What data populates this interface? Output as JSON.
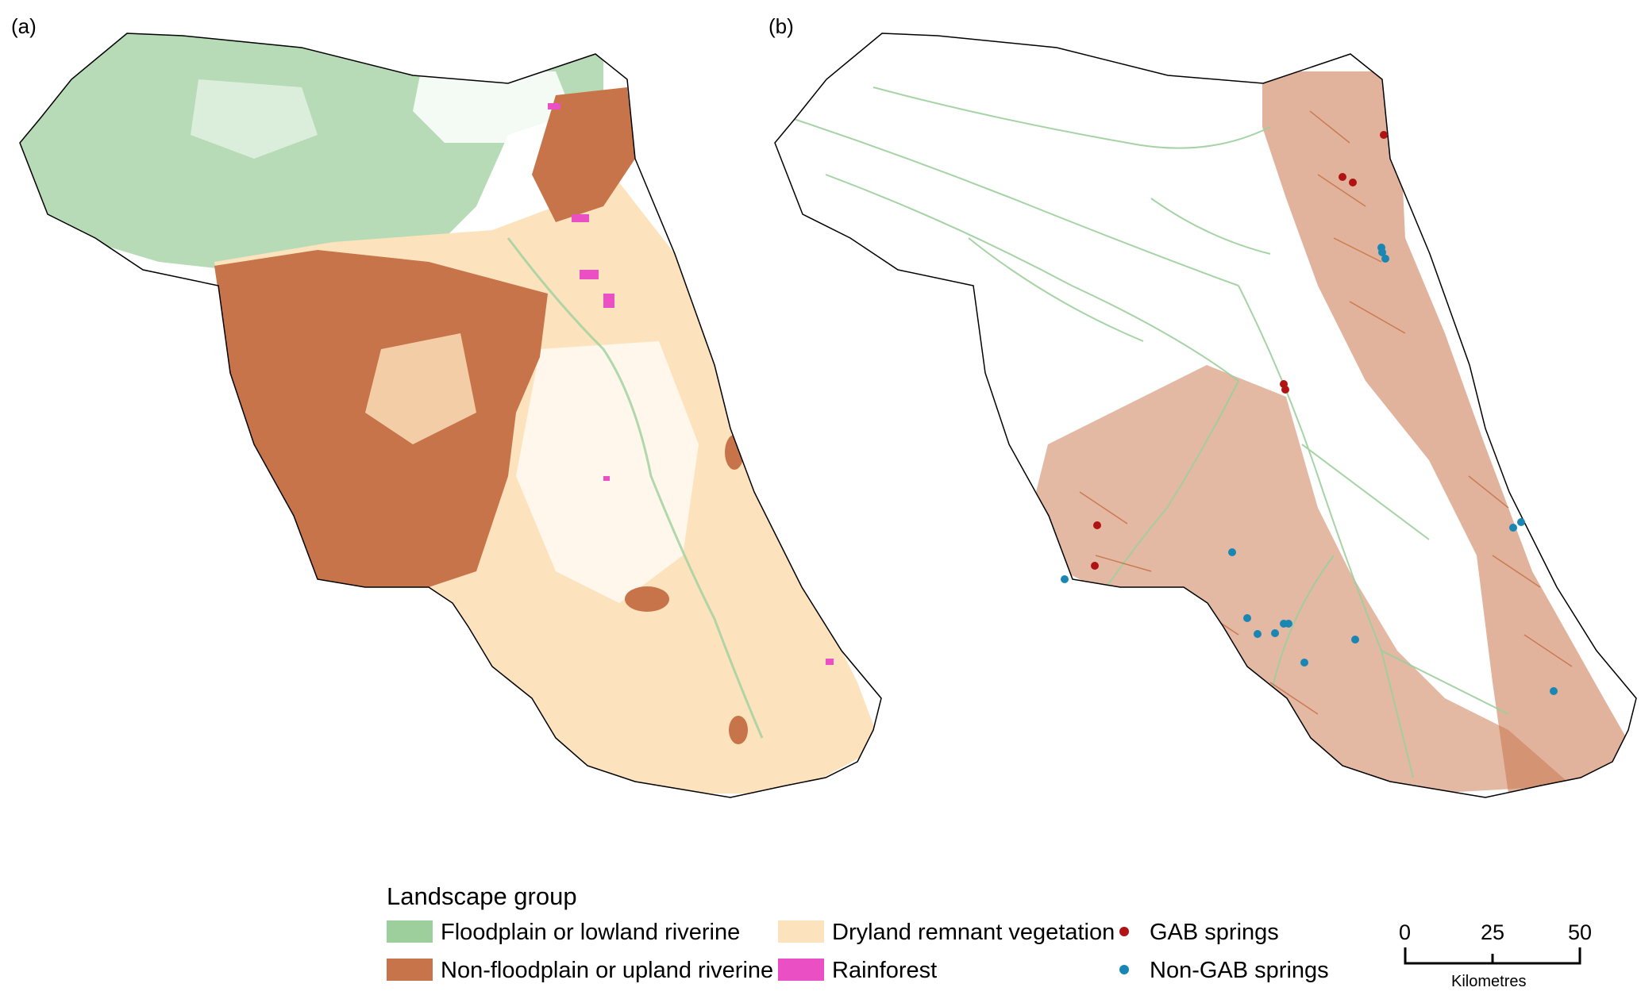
{
  "panels": [
    {
      "label": "(a)"
    },
    {
      "label": "(b)"
    }
  ],
  "legend": {
    "title": "Landscape group",
    "items": [
      {
        "label": "Floodplain or lowland riverine",
        "color": "#9dcf9d"
      },
      {
        "label": "Non-floodplain or upland riverine",
        "color": "#c8744a"
      },
      {
        "label": "Dryland remnant vegetation",
        "color": "#fde3bd"
      },
      {
        "label": "Rainforest",
        "color": "#ea4fc4"
      },
      {
        "label": "GAB springs",
        "color": "#b01313"
      },
      {
        "label": "Non-GAB springs",
        "color": "#1a86b3"
      }
    ]
  },
  "scale_bar": {
    "ticks": [
      "0",
      "25",
      "50"
    ],
    "unit": "Kilometres"
  }
}
